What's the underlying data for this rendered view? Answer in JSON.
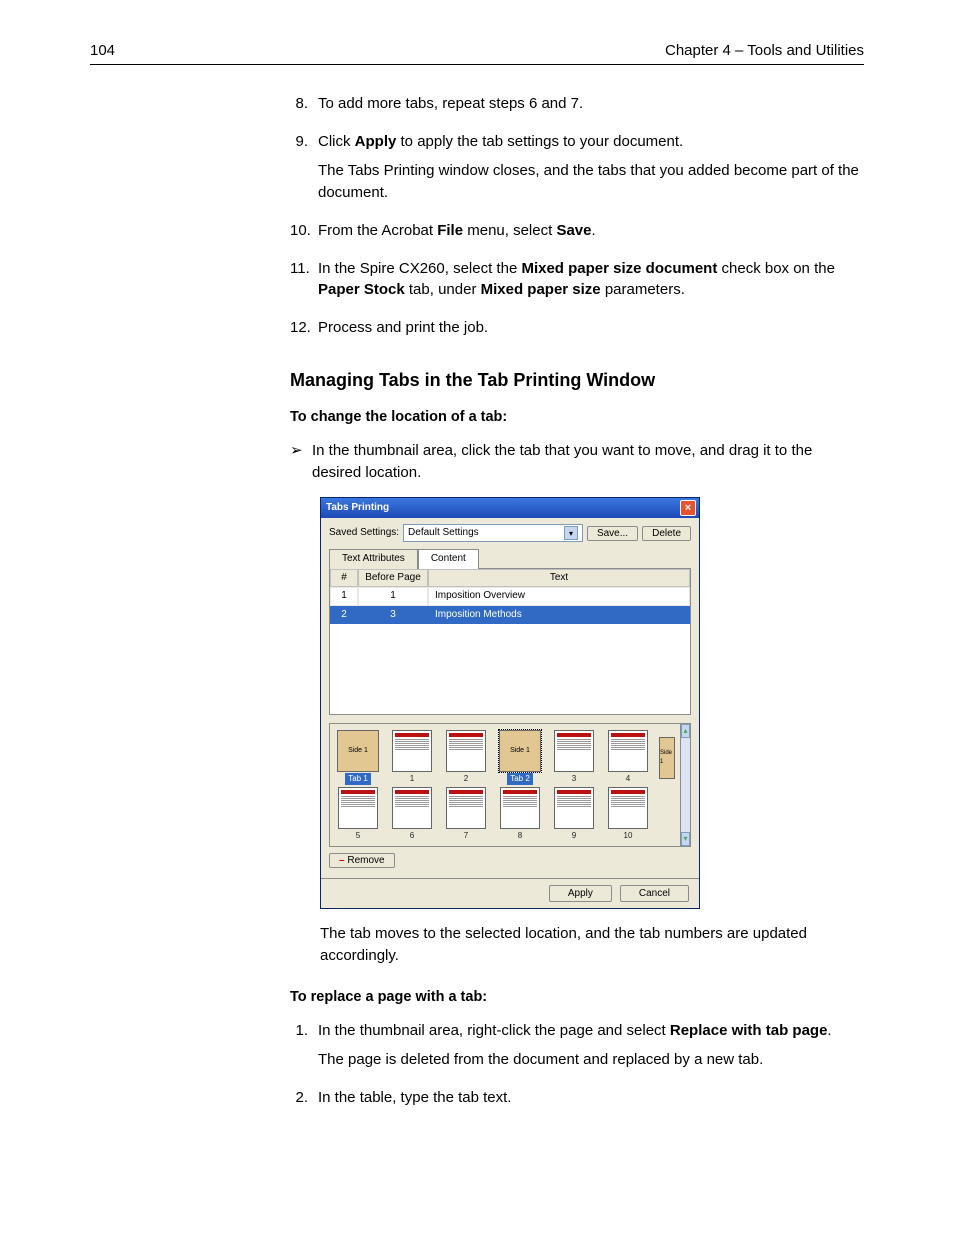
{
  "header": {
    "page_number": "104",
    "chapter": "Chapter 4 – Tools and Utilities"
  },
  "steps_top": [
    {
      "n": "8.",
      "paras": [
        "To add more tabs, repeat steps 6 and 7."
      ]
    },
    {
      "n": "9.",
      "paras": [
        "Click <b>Apply</b> to apply the tab settings to your document.",
        "The Tabs Printing window closes, and the tabs that you added become part of the document."
      ]
    },
    {
      "n": "10.",
      "paras": [
        "From the Acrobat <b>File</b> menu, select <b>Save</b>."
      ]
    },
    {
      "n": "11.",
      "paras": [
        "In the Spire CX260, select the <b>Mixed paper size document</b> check box on the <b>Paper Stock</b> tab, under <b>Mixed paper size</b> parameters."
      ]
    },
    {
      "n": "12.",
      "paras": [
        "Process and print the job."
      ]
    }
  ],
  "section_heading": "Managing Tabs in the Tab Printing Window",
  "subhead1": "To change the location of a tab:",
  "bullet1": "In the thumbnail area, click the tab that you want to move, and drag it to the desired location.",
  "window": {
    "title": "Tabs Printing",
    "saved_settings_label": "Saved Settings:",
    "saved_settings_value": "Default Settings",
    "save_btn": "Save...",
    "delete_btn": "Delete",
    "tabs": {
      "attr": "Text Attributes",
      "content": "Content"
    },
    "grid": {
      "headers": [
        "#",
        "Before Page",
        "Text"
      ],
      "rows": [
        {
          "n": "1",
          "before": "1",
          "text": "Imposition Overview",
          "sel": false
        },
        {
          "n": "2",
          "before": "3",
          "text": "Imposition Methods",
          "sel": true
        }
      ]
    },
    "thumbs": {
      "row1": [
        {
          "kind": "tab",
          "label": "Side 1",
          "cap": "Tab 1",
          "capStyle": "sel"
        },
        {
          "kind": "page",
          "cap": "1"
        },
        {
          "kind": "page",
          "cap": "2"
        },
        {
          "kind": "tab",
          "label": "Side 1",
          "cap": "Tab 2",
          "capStyle": "sel",
          "selected": true
        },
        {
          "kind": "page",
          "cap": "3"
        },
        {
          "kind": "page",
          "cap": "4"
        }
      ],
      "overflow_label": "Side 1",
      "row2": [
        {
          "kind": "page",
          "cap": "5"
        },
        {
          "kind": "page",
          "cap": "6"
        },
        {
          "kind": "page",
          "cap": "7"
        },
        {
          "kind": "page",
          "cap": "8"
        },
        {
          "kind": "page",
          "cap": "9"
        },
        {
          "kind": "page",
          "cap": "10"
        }
      ]
    },
    "remove_btn": "Remove",
    "apply_btn": "Apply",
    "cancel_btn": "Cancel"
  },
  "after_shot": "The tab moves to the selected location, and the tab numbers are updated accordingly.",
  "subhead2": "To replace a page with a tab:",
  "steps_bottom": [
    {
      "n": "1.",
      "paras": [
        "In the thumbnail area, right-click the page and select <b>Replace with tab page</b>.",
        "The page is deleted from the document and replaced by a new tab."
      ]
    },
    {
      "n": "2.",
      "paras": [
        "In the table, type the tab text."
      ]
    }
  ]
}
